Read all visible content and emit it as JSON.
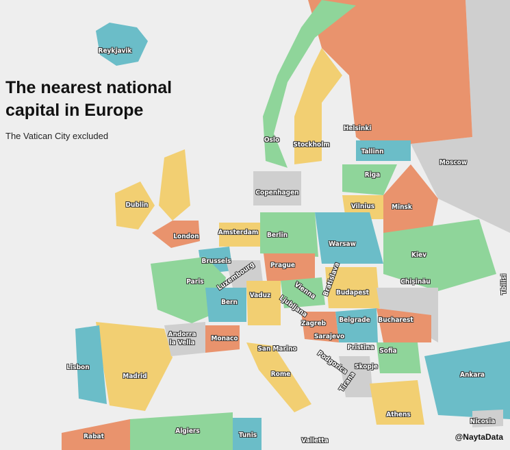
{
  "title": "The nearest national capital in Europe",
  "subtitle": "The Vatican City excluded",
  "credit": "@NaytaData",
  "cities": [
    {
      "label": "Reykjavik"
    },
    {
      "label": "Oslo"
    },
    {
      "label": "Stockholm"
    },
    {
      "label": "Helsinki"
    },
    {
      "label": "Tallinn"
    },
    {
      "label": "Moscow"
    },
    {
      "label": "Riga"
    },
    {
      "label": "Copenhagen"
    },
    {
      "label": "Dublin"
    },
    {
      "label": "Vilnius"
    },
    {
      "label": "Minsk"
    },
    {
      "label": "Amsterdam"
    },
    {
      "label": "Berlin"
    },
    {
      "label": "London"
    },
    {
      "label": "Warsaw"
    },
    {
      "label": "Brussels"
    },
    {
      "label": "Kiev"
    },
    {
      "label": "Prague"
    },
    {
      "label": "Luxembourg"
    },
    {
      "label": "Paris"
    },
    {
      "label": "Bratislava"
    },
    {
      "label": "Chișinău"
    },
    {
      "label": "Vienna"
    },
    {
      "label": "Tbilisi"
    },
    {
      "label": "Bern"
    },
    {
      "label": "Vaduz"
    },
    {
      "label": "Ljubljana"
    },
    {
      "label": "Budapest"
    },
    {
      "label": "Belgrade"
    },
    {
      "label": "Bucharest"
    },
    {
      "label": "Zagreb"
    },
    {
      "label": "Andorra la Vella"
    },
    {
      "label": "Monaco"
    },
    {
      "label": "Sarajevo"
    },
    {
      "label": "San Marino"
    },
    {
      "label": "Pristina"
    },
    {
      "label": "Sofia"
    },
    {
      "label": "Podgorica"
    },
    {
      "label": "Lisbon"
    },
    {
      "label": "Skopje"
    },
    {
      "label": "Madrid"
    },
    {
      "label": "Rome"
    },
    {
      "label": "Ankara"
    },
    {
      "label": "Tirana"
    },
    {
      "label": "Athens"
    },
    {
      "label": "Nicosia"
    },
    {
      "label": "Algiers"
    },
    {
      "label": "Rabat"
    },
    {
      "label": "Tunis"
    },
    {
      "label": "Valletta"
    }
  ]
}
